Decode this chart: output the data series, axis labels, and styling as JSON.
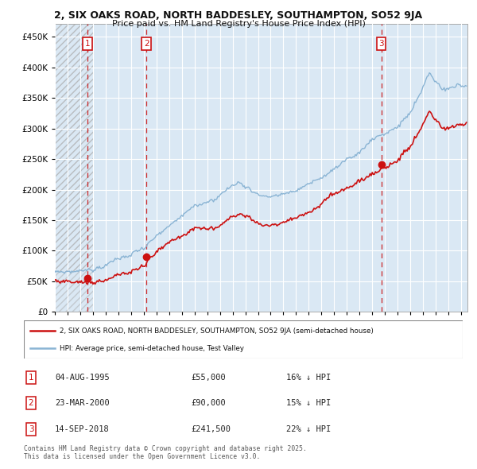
{
  "title1": "2, SIX OAKS ROAD, NORTH BADDESLEY, SOUTHAMPTON, SO52 9JA",
  "title2": "Price paid vs. HM Land Registry's House Price Index (HPI)",
  "yticks": [
    0,
    50000,
    100000,
    150000,
    200000,
    250000,
    300000,
    350000,
    400000,
    450000
  ],
  "ylim": [
    0,
    472000
  ],
  "xlim_start": 1993.0,
  "xlim_end": 2025.5,
  "sale_dates": [
    1995.583,
    2000.225,
    2018.708
  ],
  "sale_prices": [
    55000,
    90000,
    241500
  ],
  "sale_labels": [
    "1",
    "2",
    "3"
  ],
  "hpi_color": "#8ab4d4",
  "hpi_fill_color": "#dae8f4",
  "price_color": "#cc1111",
  "legend_price_label": "2, SIX OAKS ROAD, NORTH BADDESLEY, SOUTHAMPTON, SO52 9JA (semi-detached house)",
  "legend_hpi_label": "HPI: Average price, semi-detached house, Test Valley",
  "transaction_rows": [
    {
      "num": "1",
      "date": "04-AUG-1995",
      "price": "£55,000",
      "hpi": "16% ↓ HPI"
    },
    {
      "num": "2",
      "date": "23-MAR-2000",
      "price": "£90,000",
      "hpi": "15% ↓ HPI"
    },
    {
      "num": "3",
      "date": "14-SEP-2018",
      "price": "£241,500",
      "hpi": "22% ↓ HPI"
    }
  ],
  "footnote": "Contains HM Land Registry data © Crown copyright and database right 2025.\nThis data is licensed under the Open Government Licence v3.0."
}
